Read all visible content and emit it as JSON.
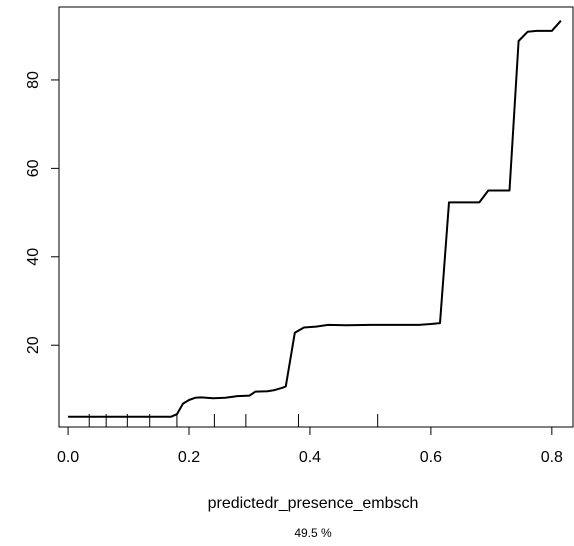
{
  "chart_data": {
    "type": "line",
    "xlabel": "predictedr_presence_embsch",
    "subtitle": "49.5 %",
    "ylabel": "",
    "xlim": [
      -0.015,
      0.835
    ],
    "ylim": [
      1.5,
      96.5
    ],
    "x_ticks": [
      0.0,
      0.2,
      0.4,
      0.6,
      0.8
    ],
    "x_tick_labels": [
      "0.0",
      "0.2",
      "0.4",
      "0.6",
      "0.8"
    ],
    "y_ticks": [
      20,
      40,
      60,
      80
    ],
    "y_tick_labels": [
      "20",
      "40",
      "60",
      "80"
    ],
    "grid": false,
    "line_color": "#000000",
    "rug": [
      0.035,
      0.063,
      0.098,
      0.135,
      0.18,
      0.242,
      0.294,
      0.381,
      0.512
    ],
    "series": [
      {
        "points": [
          [
            0.0,
            3.8
          ],
          [
            0.17,
            3.8
          ],
          [
            0.18,
            4.4
          ],
          [
            0.19,
            6.8
          ],
          [
            0.2,
            7.6
          ],
          [
            0.21,
            8.1
          ],
          [
            0.22,
            8.2
          ],
          [
            0.24,
            8.0
          ],
          [
            0.26,
            8.1
          ],
          [
            0.28,
            8.5
          ],
          [
            0.3,
            8.6
          ],
          [
            0.31,
            9.5
          ],
          [
            0.33,
            9.6
          ],
          [
            0.34,
            9.8
          ],
          [
            0.355,
            10.4
          ],
          [
            0.36,
            10.7
          ],
          [
            0.375,
            22.8
          ],
          [
            0.39,
            24.0
          ],
          [
            0.41,
            24.2
          ],
          [
            0.43,
            24.6
          ],
          [
            0.46,
            24.5
          ],
          [
            0.5,
            24.6
          ],
          [
            0.55,
            24.6
          ],
          [
            0.58,
            24.6
          ],
          [
            0.6,
            24.8
          ],
          [
            0.615,
            25.0
          ],
          [
            0.63,
            52.3
          ],
          [
            0.68,
            52.3
          ],
          [
            0.695,
            55.0
          ],
          [
            0.73,
            55.0
          ],
          [
            0.745,
            88.8
          ],
          [
            0.76,
            90.9
          ],
          [
            0.775,
            91.1
          ],
          [
            0.8,
            91.1
          ],
          [
            0.815,
            93.4
          ]
        ]
      }
    ]
  }
}
